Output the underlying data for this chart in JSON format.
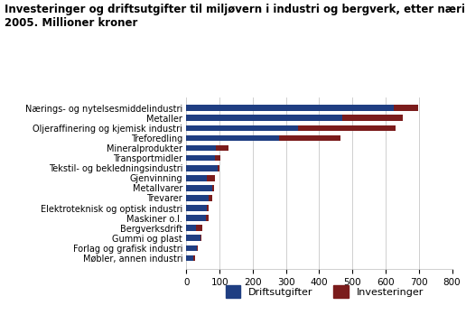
{
  "title_line1": "Investeringer og driftsutgifter til miljøvern i industri og bergverk, etter næring.",
  "title_line2": "2005. Millioner kroner",
  "categories": [
    "Nærings- og nytelsesmiddelindustri",
    "Metaller",
    "Oljeraffinering og kjemisk industri",
    "Treforedling",
    "Mineralprodukter",
    "Transportmidler",
    "Tekstil- og bekledningsindustri",
    "Gjenvinning",
    "Metallvarer",
    "Trevarer",
    "Elektroteknisk og optisk industri",
    "Maskiner o.l.",
    "Bergverksdrift",
    "Gummi og plast",
    "Forlag og grafisk industri",
    "Møbler, annen industri"
  ],
  "driftsutgifter": [
    625,
    470,
    335,
    280,
    88,
    86,
    95,
    62,
    78,
    68,
    62,
    58,
    30,
    42,
    32,
    22
  ],
  "investeringer": [
    72,
    183,
    295,
    185,
    38,
    15,
    4,
    24,
    4,
    10,
    4,
    8,
    18,
    4,
    2,
    5
  ],
  "color_drift": "#1f3e82",
  "color_invest": "#7b1c1c",
  "xlim": [
    0,
    800
  ],
  "xticks": [
    0,
    100,
    200,
    300,
    400,
    500,
    600,
    700,
    800
  ],
  "legend_labels": [
    "Driftsutgifter",
    "Investeringer"
  ],
  "bg_color": "#ffffff",
  "grid_color": "#c8c8c8"
}
